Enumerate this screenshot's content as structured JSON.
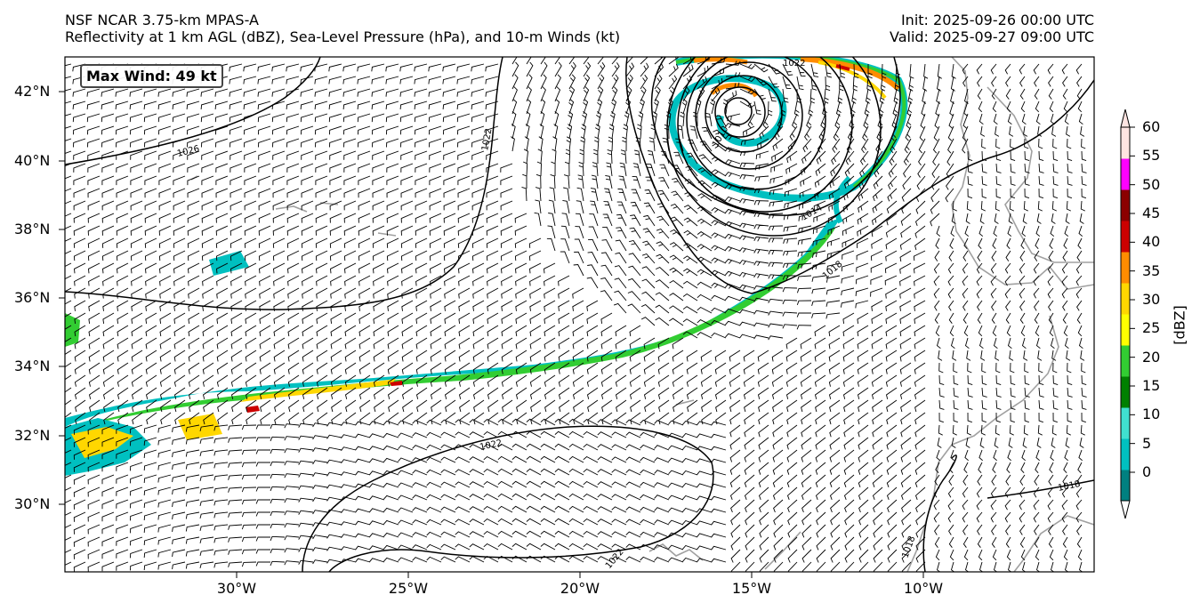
{
  "header": {
    "model": "NSF NCAR 3.75-km MPAS-A",
    "fields": "Reflectivity at 1 km AGL (dBZ), Sea-Level Pressure (hPa), and 10-m Winds (kt)",
    "init": "Init: 2025-09-26 00:00 UTC",
    "valid": "Valid: 2025-09-27 09:00 UTC"
  },
  "map": {
    "max_wind": "Max Wind: 49 kt",
    "lat_labels": [
      "42°N",
      "40°N",
      "38°N",
      "36°N",
      "34°N",
      "32°N",
      "30°N"
    ],
    "lon_labels": [
      "30°W",
      "25°W",
      "20°W",
      "15°W",
      "10°W"
    ],
    "isobar_labels": [
      "1026",
      "1022",
      "1022",
      "1022",
      "1022",
      "1018",
      "1018",
      "1018",
      "1014",
      "1010"
    ]
  },
  "colorbar": {
    "label": "[dBZ]",
    "ticks": [
      "0",
      "5",
      "10",
      "15",
      "20",
      "25",
      "30",
      "35",
      "40",
      "45",
      "50",
      "55",
      "60"
    ],
    "colors": [
      "#ffffff",
      "#008080",
      "#00c0c0",
      "#40e0d0",
      "#008000",
      "#32cd32",
      "#ffff00",
      "#ffd700",
      "#ff8c00",
      "#cc0000",
      "#8b0000",
      "#ff00ff",
      "#ffe4e1"
    ]
  }
}
